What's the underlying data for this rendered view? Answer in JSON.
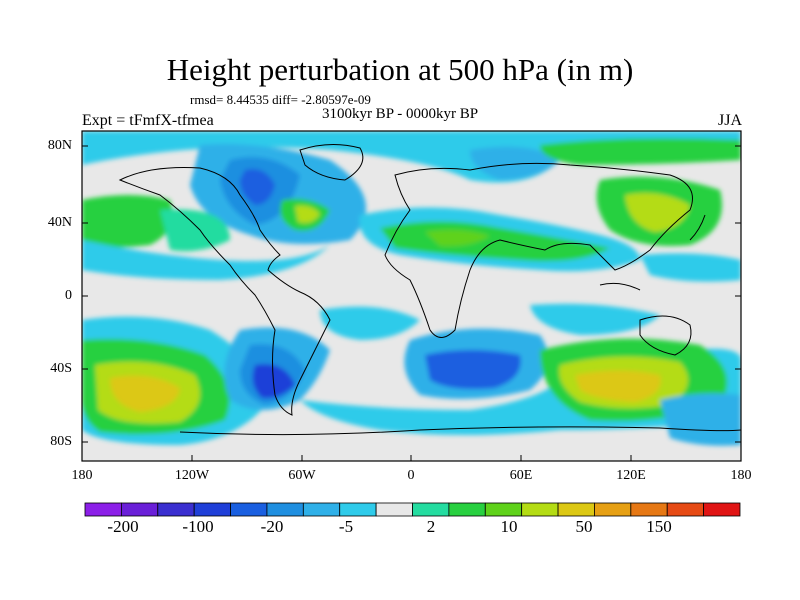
{
  "header": {
    "title": "Height perturbation at 500 hPa (in m)",
    "stats": "rmsd= 8.44535  diff= -2.80597e-09",
    "experiment": "Expt = tFmfX-tfmea",
    "period": "3100kyr BP - 0000kyr BP",
    "season": "JJA"
  },
  "axes": {
    "lat_labels": [
      "80N",
      "40N",
      "0",
      "40S",
      "80S"
    ],
    "lon_labels": [
      "180",
      "120W",
      "60W",
      "0",
      "60E",
      "120E",
      "180"
    ]
  },
  "colorbar": {
    "colors": [
      "#8c1fe8",
      "#6a1fd8",
      "#3b2fd0",
      "#1f3fd8",
      "#1a5fe0",
      "#1f8fe0",
      "#2fb0e8",
      "#2fcbea",
      "#e8e8e8",
      "#24dca0",
      "#28d040",
      "#5fd21a",
      "#b4dc14",
      "#dcc814",
      "#e6a014",
      "#e67814",
      "#e64a14",
      "#e01414"
    ],
    "labels": [
      "-200",
      "-100",
      "-20",
      "-5",
      "2",
      "10",
      "50",
      "150"
    ]
  },
  "map": {
    "background_color": "#e8e8e8",
    "coastline_color": "#000000"
  }
}
